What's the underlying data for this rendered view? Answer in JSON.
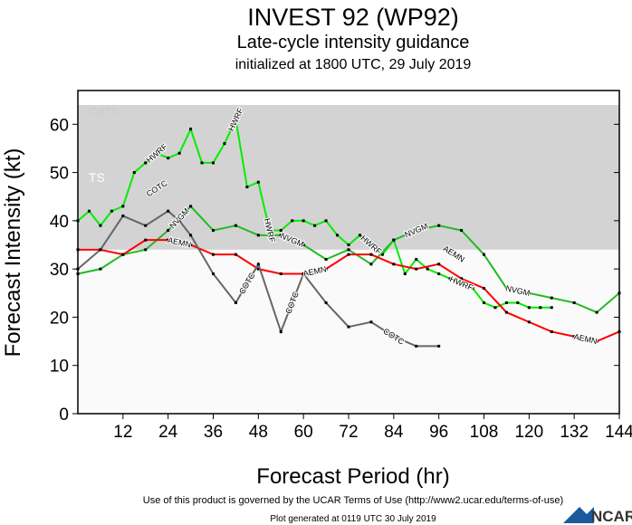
{
  "chart_data": {
    "type": "line",
    "title": "INVEST 92 (WP92)",
    "subtitle": "Late-cycle intensity guidance",
    "subtitle2": "initialized at 1800 UTC, 29 July 2019",
    "xlabel": "Forecast Period (hr)",
    "ylabel": "Forecast Intensity (kt)",
    "xlim": [
      0,
      144
    ],
    "ylim": [
      0,
      67
    ],
    "xticks": [
      12,
      24,
      36,
      48,
      60,
      72,
      84,
      96,
      108,
      120,
      132,
      144
    ],
    "yticks": [
      0,
      10,
      20,
      30,
      40,
      50,
      60
    ],
    "bands": [
      {
        "label": "TS",
        "from": 34,
        "to": 64,
        "color": "#d3d3d3"
      },
      {
        "label": "CAT1",
        "from": 64,
        "to": 67,
        "color": "#ffffff"
      }
    ],
    "below_band_color": "#fafafa",
    "series": [
      {
        "name": "HWRF",
        "color": "#00ee00",
        "points": [
          [
            0,
            40
          ],
          [
            3,
            42
          ],
          [
            6,
            39
          ],
          [
            9,
            42
          ],
          [
            12,
            43
          ],
          [
            15,
            50
          ],
          [
            18,
            52
          ],
          [
            21,
            54
          ],
          [
            24,
            53
          ],
          [
            27,
            54
          ],
          [
            30,
            59
          ],
          [
            33,
            52
          ],
          [
            36,
            52
          ],
          [
            39,
            56
          ],
          [
            42,
            61
          ],
          [
            45,
            47
          ],
          [
            48,
            48
          ],
          [
            51,
            38
          ],
          [
            54,
            38
          ],
          [
            57,
            40
          ],
          [
            60,
            40
          ],
          [
            63,
            39
          ],
          [
            66,
            40
          ],
          [
            69,
            37
          ],
          [
            72,
            35
          ],
          [
            75,
            37
          ],
          [
            78,
            35
          ],
          [
            81,
            33
          ],
          [
            84,
            36
          ],
          [
            87,
            29
          ],
          [
            90,
            32
          ],
          [
            93,
            30
          ],
          [
            96,
            29
          ],
          [
            99,
            28
          ],
          [
            102,
            27
          ],
          [
            105,
            26
          ],
          [
            108,
            23
          ],
          [
            111,
            22
          ],
          [
            114,
            23
          ],
          [
            117,
            23
          ],
          [
            120,
            22
          ],
          [
            123,
            22
          ],
          [
            126,
            22
          ]
        ],
        "labels_at": [
          21,
          42,
          51,
          78,
          102
        ]
      },
      {
        "name": "NVGM",
        "color": "#22bb22",
        "points": [
          [
            0,
            29
          ],
          [
            6,
            30
          ],
          [
            12,
            33
          ],
          [
            18,
            34
          ],
          [
            24,
            38
          ],
          [
            30,
            43
          ],
          [
            36,
            38
          ],
          [
            42,
            39
          ],
          [
            48,
            37
          ],
          [
            54,
            37
          ],
          [
            60,
            35
          ],
          [
            66,
            32
          ],
          [
            72,
            34
          ],
          [
            78,
            31
          ],
          [
            84,
            36
          ],
          [
            90,
            38
          ],
          [
            96,
            39
          ],
          [
            102,
            38
          ],
          [
            108,
            33
          ],
          [
            114,
            26
          ],
          [
            120,
            25
          ],
          [
            126,
            24
          ],
          [
            132,
            23
          ],
          [
            138,
            21
          ],
          [
            144,
            25
          ]
        ],
        "labels_at": [
          27,
          57,
          90,
          117
        ]
      },
      {
        "name": "AEMN",
        "color": "#ff0000",
        "points": [
          [
            0,
            34
          ],
          [
            6,
            34
          ],
          [
            12,
            33
          ],
          [
            18,
            36
          ],
          [
            24,
            36
          ],
          [
            30,
            35
          ],
          [
            36,
            33
          ],
          [
            42,
            33
          ],
          [
            48,
            30
          ],
          [
            54,
            29
          ],
          [
            60,
            29
          ],
          [
            66,
            30
          ],
          [
            72,
            33
          ],
          [
            78,
            33
          ],
          [
            84,
            31
          ],
          [
            90,
            30
          ],
          [
            96,
            31
          ],
          [
            102,
            28
          ],
          [
            108,
            26
          ],
          [
            114,
            21
          ],
          [
            120,
            19
          ],
          [
            126,
            17
          ],
          [
            132,
            16
          ],
          [
            138,
            15
          ],
          [
            144,
            17
          ]
        ],
        "labels_at": [
          27,
          63,
          100,
          135
        ]
      },
      {
        "name": "COTC",
        "color": "#666666",
        "points": [
          [
            0,
            30
          ],
          [
            6,
            34
          ],
          [
            12,
            41
          ],
          [
            18,
            39
          ],
          [
            24,
            42
          ],
          [
            27,
            40
          ],
          [
            30,
            37
          ],
          [
            36,
            29
          ],
          [
            42,
            23
          ],
          [
            48,
            31
          ],
          [
            54,
            17
          ],
          [
            60,
            29
          ],
          [
            66,
            23
          ],
          [
            72,
            18
          ],
          [
            78,
            19
          ],
          [
            84,
            16
          ],
          [
            90,
            14
          ],
          [
            96,
            14
          ]
        ],
        "labels_at": [
          21,
          45,
          57,
          84
        ]
      }
    ]
  },
  "footer": {
    "terms": "Use of this product is governed by the UCAR Terms of Use (http://www2.ucar.edu/terms-of-use)",
    "generated": "Plot generated at 0119 UTC   30 July 2019",
    "logo": "NCAR"
  }
}
